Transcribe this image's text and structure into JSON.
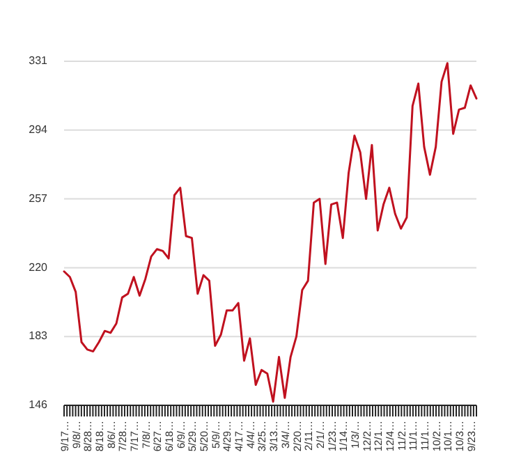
{
  "chart_data": {
    "type": "line",
    "categories": [
      "9/17…",
      null,
      "9/8/…",
      null,
      "8/28…",
      null,
      "8/18…",
      null,
      "8/6/…",
      null,
      "7/28…",
      null,
      "7/17…",
      null,
      "7/8/…",
      null,
      "6/27…",
      null,
      "6/18…",
      null,
      "6/9/…",
      null,
      "5/29…",
      null,
      "5/20…",
      null,
      "5/9/…",
      null,
      "4/29…",
      null,
      "4/17…",
      null,
      "4/4/…",
      null,
      "3/25…",
      null,
      "3/13…",
      null,
      "3/4/…",
      null,
      "2/20…",
      null,
      "2/11…",
      null,
      "2/1/…",
      null,
      "1/23…",
      null,
      "1/14…",
      null,
      "1/3/…",
      null,
      "12/2…",
      null,
      "12/1…",
      null,
      "12/4…",
      null,
      "11/2…",
      null,
      "11/1…",
      null,
      "11/1…",
      null,
      "10/2…",
      null,
      "10/1…",
      null,
      "10/3…",
      null,
      "9/23…",
      null
    ],
    "series": [
      {
        "color": "#c0111f",
        "values": [
          218,
          215,
          207,
          180,
          176,
          175,
          180,
          186,
          185,
          190,
          204,
          206,
          215,
          205,
          214,
          226,
          230,
          229,
          225,
          259,
          263,
          237,
          236,
          206,
          216,
          213,
          178,
          184,
          197,
          197,
          201,
          170,
          182,
          157,
          165,
          163,
          148,
          172,
          150,
          172,
          183,
          208,
          213,
          255,
          257,
          222,
          254,
          255,
          236,
          271,
          291,
          282,
          257,
          286,
          240,
          254,
          263,
          249,
          241,
          247,
          307,
          319,
          285,
          270,
          285,
          320,
          330,
          292,
          305,
          306,
          318,
          311
        ]
      }
    ],
    "ylim": [
      146,
      331
    ],
    "yticks": [
      146,
      183,
      220,
      257,
      294,
      331
    ],
    "grid": "y",
    "line_style": "solid",
    "marker": "none"
  }
}
